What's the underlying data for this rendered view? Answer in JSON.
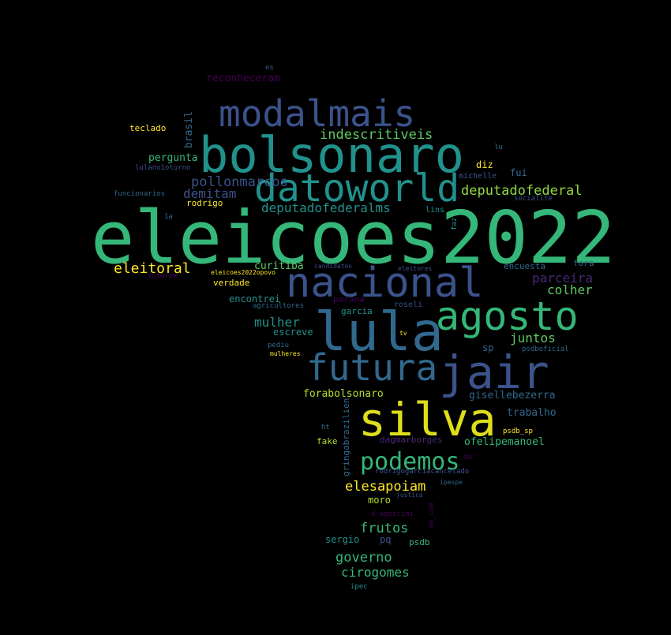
{
  "background_color": "#000000",
  "palette": {
    "viridis_purple": "#440154",
    "viridis_indigo": "#3b528b",
    "viridis_blue": "#31688e",
    "viridis_teal": "#21918c",
    "viridis_green": "#35b779",
    "viridis_lime": "#90d743",
    "viridis_yellow": "#fde725"
  },
  "words": [
    {
      "text": "eleicoes2022",
      "color": "#35b779"
    },
    {
      "text": "bolsonaro",
      "color": "#21918c"
    },
    {
      "text": "modalmais",
      "color": "#3b528b"
    },
    {
      "text": "datoworld",
      "color": "#21918c"
    },
    {
      "text": "nacional",
      "color": "#3b528b"
    },
    {
      "text": "lula",
      "color": "#31688e"
    },
    {
      "text": "agosto",
      "color": "#35b779"
    },
    {
      "text": "futura",
      "color": "#31688e"
    },
    {
      "text": "jair",
      "color": "#3b528b"
    },
    {
      "text": "silva",
      "color": "#dede1a"
    },
    {
      "text": "podemos",
      "color": "#35b779"
    },
    {
      "text": "indescritiveis",
      "color": "#5ec962"
    },
    {
      "text": "deputadofederal",
      "color": "#90d743"
    },
    {
      "text": "pollonmarcos",
      "color": "#3b528b"
    },
    {
      "text": "demitam",
      "color": "#3b528b"
    },
    {
      "text": "deputadofederalms",
      "color": "#21918c"
    },
    {
      "text": "eleitoral",
      "color": "#fde725"
    },
    {
      "text": "parceira",
      "color": "#482878"
    },
    {
      "text": "colher",
      "color": "#5ec962"
    },
    {
      "text": "mulher",
      "color": "#21918c"
    },
    {
      "text": "juntos",
      "color": "#5ec962"
    },
    {
      "text": "elesapoiam",
      "color": "#fde725"
    },
    {
      "text": "frutos",
      "color": "#35b779"
    },
    {
      "text": "governo",
      "color": "#35b779"
    },
    {
      "text": "cirogomes",
      "color": "#35b779"
    },
    {
      "text": "forabolsonaro",
      "color": "#b5de2b"
    },
    {
      "text": "gisellebezerra",
      "color": "#31688e"
    },
    {
      "text": "trabalho",
      "color": "#31688e"
    },
    {
      "text": "ofelipemanoel",
      "color": "#35b779"
    },
    {
      "text": "reconheceram",
      "color": "#440154"
    },
    {
      "text": "pergunta",
      "color": "#35b779"
    },
    {
      "text": "brasil",
      "color": "#31688e"
    },
    {
      "text": "teclado",
      "color": "#fde725"
    },
    {
      "text": "curitiba",
      "color": "#5ec962"
    },
    {
      "text": "verdade",
      "color": "#fde725"
    },
    {
      "text": "encontrei",
      "color": "#21918c"
    },
    {
      "text": "escreve",
      "color": "#21918c"
    },
    {
      "text": "diz",
      "color": "#fde725"
    },
    {
      "text": "fui",
      "color": "#31688e"
    },
    {
      "text": "sp",
      "color": "#31688e"
    },
    {
      "text": "moro",
      "color": "#b5de2b"
    },
    {
      "text": "sergio",
      "color": "#21918c"
    },
    {
      "text": "pq",
      "color": "#3b528b"
    },
    {
      "text": "psdb",
      "color": "#35b779"
    },
    {
      "text": "fake",
      "color": "#b5de2b"
    },
    {
      "text": "gringabrazilien",
      "color": "#31688e"
    },
    {
      "text": "dagmarborges",
      "color": "#482878"
    },
    {
      "text": "rodrigo",
      "color": "#fde725"
    },
    {
      "text": "lulano1oturno",
      "color": "#3b528b"
    },
    {
      "text": "funcionarios",
      "color": "#31688e"
    },
    {
      "text": "michelle",
      "color": "#3b528b"
    },
    {
      "text": "socialite",
      "color": "#3b528b"
    },
    {
      "text": "lins",
      "color": "#21918c"
    },
    {
      "text": "faz",
      "color": "#21918c"
    },
    {
      "text": "fora",
      "color": "#31688e"
    },
    {
      "text": "encuesta",
      "color": "#31688e"
    },
    {
      "text": "candidatos",
      "color": "#3b528b"
    },
    {
      "text": "eleicoes2022opovo",
      "color": "#fde725"
    },
    {
      "text": "votarem",
      "color": "#440154"
    },
    {
      "text": "agricultores",
      "color": "#31688e"
    },
    {
      "text": "parana",
      "color": "#440154"
    },
    {
      "text": "roseli",
      "color": "#3b528b"
    },
    {
      "text": "garcia",
      "color": "#21918c"
    },
    {
      "text": "pediu",
      "color": "#31688e"
    },
    {
      "text": "mulheres",
      "color": "#fde725"
    },
    {
      "text": "tv",
      "color": "#fde725"
    },
    {
      "text": "psdboficial",
      "color": "#31688e"
    },
    {
      "text": "ht",
      "color": "#31688e"
    },
    {
      "text": "psdb_sp",
      "color": "#fde725"
    },
    {
      "text": "do'",
      "color": "#440154"
    },
    {
      "text": "rodrigogarciacancelado",
      "color": "#3b528b"
    },
    {
      "text": "justica",
      "color": "#3b528b"
    },
    {
      "text": "ipespe",
      "color": "#31688e"
    },
    {
      "text": "d'agostini",
      "color": "#440154"
    },
    {
      "text": "em_com",
      "color": "#440154"
    },
    {
      "text": "ipec",
      "color": "#21918c"
    },
    {
      "text": "es",
      "color": "#3b528b"
    },
    {
      "text": "eleitores",
      "color": "#3b528b"
    },
    {
      "text": "lu",
      "color": "#31688e"
    },
    {
      "text": "1a",
      "color": "#31688e"
    }
  ]
}
